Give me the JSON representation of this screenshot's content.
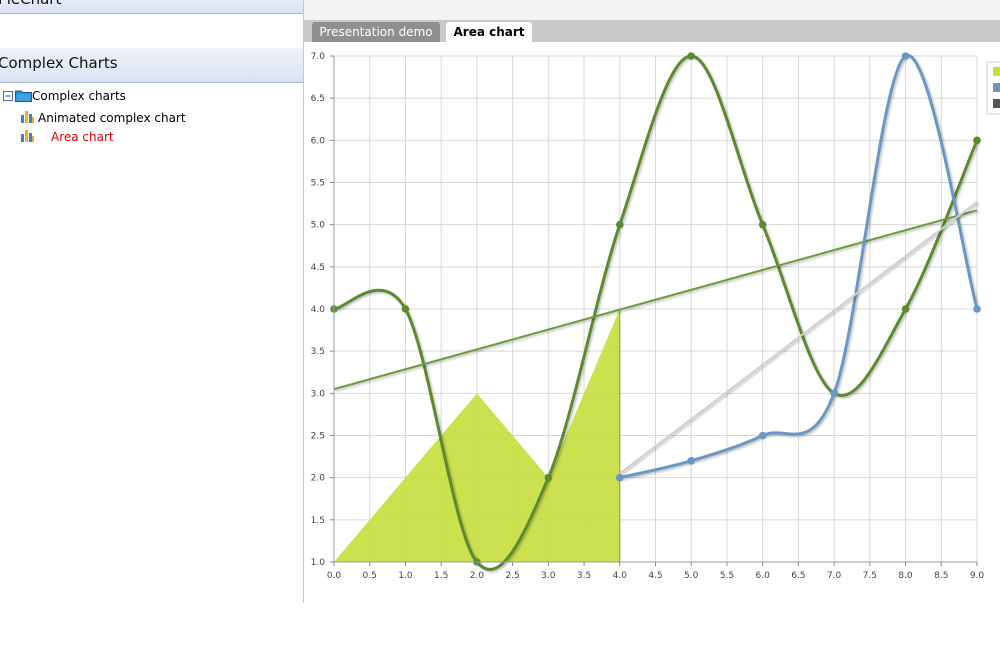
{
  "sidebar": {
    "header1": "PieChart",
    "header2": "Complex Charts",
    "tree": {
      "root": "Complex charts",
      "items": [
        {
          "label": "Animated complex chart",
          "selected": false
        },
        {
          "label": "Area chart",
          "selected": true
        }
      ]
    }
  },
  "tabs": [
    {
      "label": "Presentation demo",
      "active": false
    },
    {
      "label": "Area chart",
      "active": true
    }
  ],
  "colors": {
    "green_line": "#5c8a2e",
    "area_fill": "#c6de3c",
    "blue_line": "#6b97c4",
    "gray_line": "#cfcfcf",
    "selected_text": "#e00000"
  },
  "chart_data": {
    "type": "area",
    "xlim": [
      0,
      9
    ],
    "ylim": [
      1,
      7
    ],
    "x_ticks": [
      "0.0",
      "0.5",
      "1.0",
      "1.5",
      "2.0",
      "2.5",
      "3.0",
      "3.5",
      "4.0",
      "4.5",
      "5.0",
      "5.5",
      "6.0",
      "6.5",
      "7.0",
      "7.5",
      "8.0",
      "8.5",
      "9.0"
    ],
    "y_ticks": [
      "1.0",
      "1.5",
      "2.0",
      "2.5",
      "3.0",
      "3.5",
      "4.0",
      "4.5",
      "5.0",
      "5.5",
      "6.0",
      "6.5",
      "7.0"
    ],
    "grid": true,
    "legend_position": "right",
    "series": [
      {
        "type": "area",
        "color": "#c6de3c",
        "x": [
          0,
          1,
          2,
          3,
          4
        ],
        "y": [
          1,
          2,
          3,
          2,
          4
        ]
      },
      {
        "type": "spline",
        "color": "#5c8a2e",
        "x": [
          0,
          1,
          2,
          3,
          4,
          5,
          6,
          7,
          8,
          9
        ],
        "y": [
          4,
          4,
          1,
          2,
          5,
          7,
          5,
          3,
          4,
          6
        ]
      },
      {
        "type": "line",
        "color": "#6e9a3c",
        "x": [
          0,
          9
        ],
        "y": [
          3.05,
          5.17
        ]
      },
      {
        "type": "spline",
        "color": "#6b97c4",
        "x": [
          4,
          5,
          6,
          7,
          8,
          9
        ],
        "y": [
          2,
          2.2,
          2.5,
          3,
          7,
          4
        ]
      },
      {
        "type": "line",
        "color": "#cfcfcf",
        "x": [
          4,
          9
        ],
        "y": [
          2.05,
          5.27
        ]
      }
    ],
    "legend_colors": [
      "#c6de3c",
      "#6b97c4",
      "#555555"
    ]
  }
}
